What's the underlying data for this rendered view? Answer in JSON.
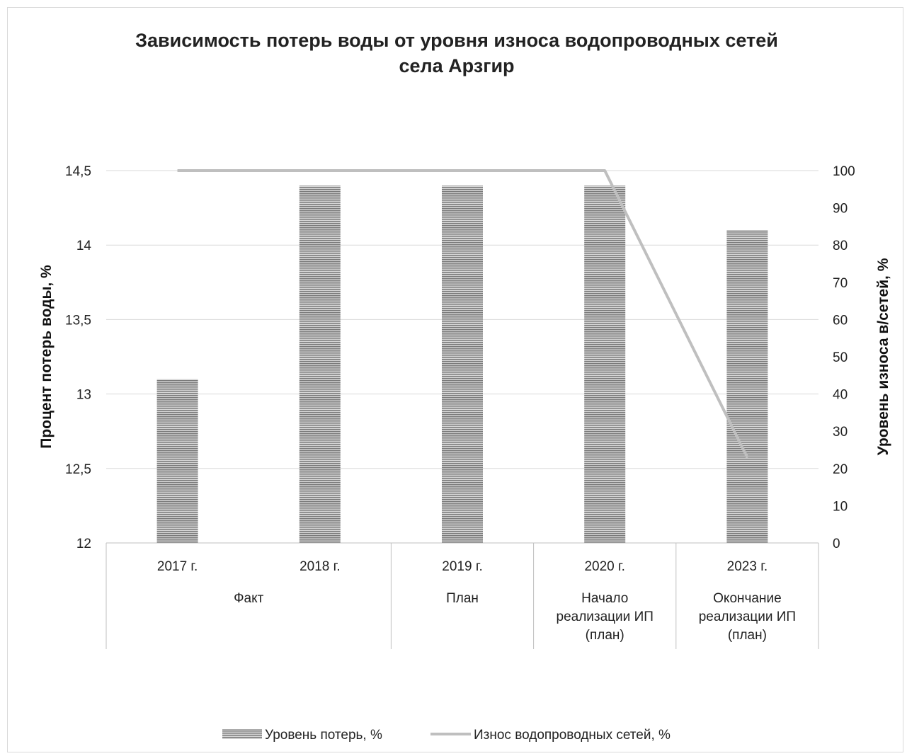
{
  "chart_data": {
    "type": "bar",
    "title": "Зависимость потерь воды от уровня износа водопроводных сетей села Арзгир",
    "title_lines": [
      "Зависимость потерь воды от уровня износа водопроводных сетей",
      "села Арзгир"
    ],
    "categories": [
      "2017 г.",
      "2018 г.",
      "2019 г.",
      "2020 г.",
      "2023 г."
    ],
    "groups": [
      {
        "lines": [
          "Факт"
        ],
        "span": [
          0,
          1
        ]
      },
      {
        "lines": [
          "План"
        ],
        "span": [
          2,
          2
        ]
      },
      {
        "lines": [
          "Начало",
          "реализации ИП",
          "(план)"
        ],
        "span": [
          3,
          3
        ]
      },
      {
        "lines": [
          "Окончание",
          "реализации ИП",
          "(план)"
        ],
        "span": [
          4,
          4
        ]
      }
    ],
    "series": [
      {
        "name": "Уровень потерь, %",
        "type": "bar",
        "axis": "left",
        "values": [
          13.1,
          14.4,
          14.4,
          14.4,
          14.1
        ],
        "color": "#8c8c8c"
      },
      {
        "name": "Износ водопроводных сетей, %",
        "type": "line",
        "axis": "right",
        "values": [
          100,
          100,
          100,
          100,
          23
        ],
        "color": "#bfbfbf"
      }
    ],
    "ylabel": "Процент потерь воды, %",
    "y2label": "Уровень износа в/сетей, %",
    "ylim": [
      12,
      14.5
    ],
    "yticks": [
      "12",
      "12,5",
      "13",
      "13,5",
      "14",
      "14,5"
    ],
    "y2lim": [
      0,
      100
    ],
    "y2ticks": [
      "0",
      "10",
      "20",
      "30",
      "40",
      "50",
      "60",
      "70",
      "80",
      "90",
      "100"
    ],
    "grid": true,
    "legend_position": "bottom"
  }
}
